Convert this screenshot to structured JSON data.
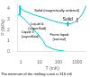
{
  "chart_data": {
    "type": "line",
    "xlabel": "T (mK)",
    "ylabel": "P (MPa)",
    "log": "x",
    "grid": false,
    "xlim": [
      0.7,
      3300
    ],
    "ylim": [
      0,
      4.5
    ],
    "xticks": [
      1,
      10,
      100,
      1000
    ],
    "yticks": [
      0,
      1,
      2,
      3,
      4
    ],
    "series": [
      {
        "x": [
          0.9,
          0.9
        ],
        "values": [
          4.3,
          3.45
        ],
        "color": "#00c8d4"
      },
      {
        "x": [
          0.7,
          0.9
        ],
        "values": [
          3.45,
          3.45
        ],
        "color": "#00c8d4"
      },
      {
        "x": [
          0.9,
          1.0,
          1.5,
          2.0,
          3.0,
          5.0,
          10.0,
          20.0,
          50.0,
          100.0,
          200.0,
          316.0,
          500.0,
          700.0,
          1000.0,
          1500.0,
          2000.0,
          3000.0
        ],
        "values": [
          4.3,
          4.05,
          3.82,
          3.73,
          3.6,
          3.45,
          3.28,
          3.12,
          2.88,
          2.72,
          2.62,
          2.57,
          2.63,
          2.73,
          2.95,
          3.28,
          3.62,
          4.3
        ],
        "color": "#00c8d4"
      },
      {
        "x": [
          0.9,
          1.0,
          1.5,
          2.0,
          3.0,
          5.0,
          9.0,
          15.0,
          22.0
        ],
        "values": [
          3.45,
          3.3,
          3.08,
          2.82,
          2.48,
          2.05,
          1.52,
          1.0,
          0.5
        ],
        "color": "#00c8d4"
      },
      {
        "x": [
          22.0,
          50.0,
          100.0,
          200.0
        ],
        "values": [
          0.5,
          0.22,
          0.08,
          0.02
        ],
        "color": "#00c8d4"
      },
      {
        "x": [
          316
        ],
        "values": [
          2.57
        ],
        "color": "#000000",
        "type": "scatter",
        "marker": "tick"
      },
      {
        "x": [
          1000
        ],
        "values": [
          2.95
        ],
        "color": "#000000",
        "type": "scatter",
        "marker": "tick"
      }
    ],
    "annotations": [
      "Solid (magnetically ordered)",
      "Solid",
      "Liquid &\n(superfluid)",
      "Liquid II\n(superfluid)",
      "Fermi liquid\n(normal)"
    ],
    "footnote": "The minimum of the melting curve is 316 mK"
  }
}
